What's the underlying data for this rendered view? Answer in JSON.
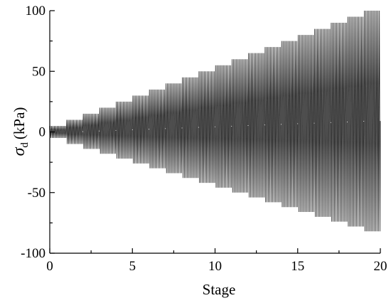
{
  "chart_data": {
    "type": "line",
    "title": "",
    "xlabel": "Stage",
    "ylabel_symbol": "σ",
    "ylabel_subscript": "d",
    "ylabel_unit": "(kPa)",
    "xlim": [
      0,
      20
    ],
    "ylim": [
      -100,
      100
    ],
    "xticks": [
      0,
      5,
      10,
      15,
      20
    ],
    "yticks": [
      -100,
      -50,
      0,
      50,
      100
    ],
    "grid": false,
    "legend": "none",
    "series": [
      {
        "cycles_per_stage": 12,
        "stages": [
          {
            "stage": 0,
            "max": 5,
            "min": -5
          },
          {
            "stage": 1,
            "max": 10,
            "min": -10
          },
          {
            "stage": 2,
            "max": 15,
            "min": -14
          },
          {
            "stage": 3,
            "max": 20,
            "min": -18
          },
          {
            "stage": 4,
            "max": 25,
            "min": -22
          },
          {
            "stage": 5,
            "max": 30,
            "min": -26
          },
          {
            "stage": 6,
            "max": 35,
            "min": -30
          },
          {
            "stage": 7,
            "max": 40,
            "min": -34
          },
          {
            "stage": 8,
            "max": 45,
            "min": -38
          },
          {
            "stage": 9,
            "max": 50,
            "min": -42
          },
          {
            "stage": 10,
            "max": 55,
            "min": -46
          },
          {
            "stage": 11,
            "max": 60,
            "min": -50
          },
          {
            "stage": 12,
            "max": 65,
            "min": -54
          },
          {
            "stage": 13,
            "max": 70,
            "min": -58
          },
          {
            "stage": 14,
            "max": 75,
            "min": -62
          },
          {
            "stage": 15,
            "max": 80,
            "min": -66
          },
          {
            "stage": 16,
            "max": 85,
            "min": -70
          },
          {
            "stage": 17,
            "max": 90,
            "min": -74
          },
          {
            "stage": 18,
            "max": 95,
            "min": -78
          },
          {
            "stage": 19,
            "max": 100,
            "min": -82
          }
        ]
      }
    ]
  }
}
